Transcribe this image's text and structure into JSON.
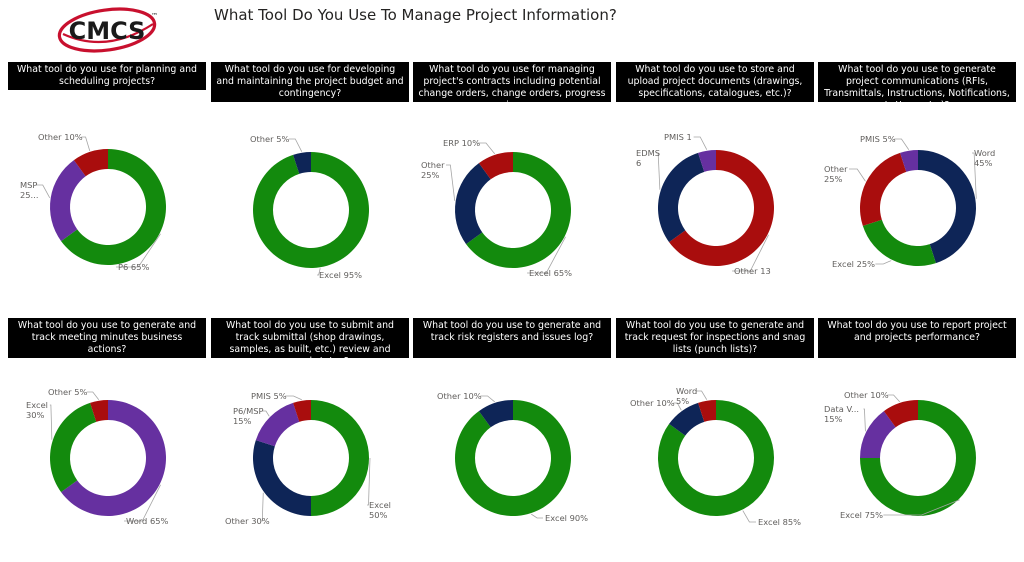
{
  "header": {
    "logo_text": "CMCS",
    "logo_tm": "™",
    "title": "What Tool Do You Use To Manage Project Information?"
  },
  "colors": {
    "green": "#138a0d",
    "purple": "#6630a0",
    "red": "#a90d0d",
    "navy": "#0e2557"
  },
  "chart_data": [
    {
      "type": "pie",
      "title": "What tool do you use for planning and scheduling projects?",
      "slices": [
        {
          "label": "P6",
          "value": 65,
          "display": "P6 65%",
          "color": "#138a0d"
        },
        {
          "label": "MSP",
          "value": 25,
          "display": "MSP|25...",
          "color": "#6630a0"
        },
        {
          "label": "Other",
          "value": 10,
          "display": "Other 10%",
          "color": "#a90d0d"
        }
      ]
    },
    {
      "type": "pie",
      "title": "What tool do you use for developing and maintaining the project budget and contingency?",
      "slices": [
        {
          "label": "Excel",
          "value": 95,
          "display": "Excel 95%",
          "color": "#138a0d"
        },
        {
          "label": "Other",
          "value": 5,
          "display": "Other 5%",
          "color": "#0e2557"
        }
      ]
    },
    {
      "type": "pie",
      "title": "What tool do you use for managing project's contracts including potential change orders, change orders, progress i...",
      "slices": [
        {
          "label": "Excel",
          "value": 65,
          "display": "Excel 65%",
          "color": "#138a0d"
        },
        {
          "label": "Other",
          "value": 25,
          "display": "Other|25%",
          "color": "#0e2557"
        },
        {
          "label": "ERP",
          "value": 10,
          "display": "ERP 10%",
          "color": "#a90d0d"
        }
      ]
    },
    {
      "type": "pie",
      "title": "What tool do you use to store and upload project documents (drawings, specifications, catalogues, etc.)?",
      "slices": [
        {
          "label": "Other",
          "value": 13,
          "display": "Other 13",
          "color": "#a90d0d"
        },
        {
          "label": "EDMS",
          "value": 6,
          "display": "EDMS|6",
          "color": "#0e2557"
        },
        {
          "label": "PMIS",
          "value": 1,
          "display": "PMIS 1",
          "color": "#6630a0"
        }
      ]
    },
    {
      "type": "pie",
      "title": "What tool do you use to generate project communications (RFIs, Transmittals, Instructions, Notifications, Letters, etc.)?",
      "slices": [
        {
          "label": "Word",
          "value": 45,
          "display": "Word|45%",
          "color": "#0e2557"
        },
        {
          "label": "Excel",
          "value": 25,
          "display": "Excel 25%",
          "color": "#138a0d"
        },
        {
          "label": "Other",
          "value": 25,
          "display": "Other|25%",
          "color": "#a90d0d"
        },
        {
          "label": "PMIS",
          "value": 5,
          "display": "PMIS 5%",
          "color": "#6630a0"
        }
      ]
    },
    {
      "type": "pie",
      "title": "What tool do you use to generate and track meeting minutes business actions?",
      "slices": [
        {
          "label": "Word",
          "value": 65,
          "display": "Word 65%",
          "color": "#6630a0"
        },
        {
          "label": "Excel",
          "value": 30,
          "display": "Excel|30%",
          "color": "#138a0d"
        },
        {
          "label": "Other",
          "value": 5,
          "display": "Other 5%",
          "color": "#a90d0d"
        }
      ]
    },
    {
      "type": "pie",
      "title": "What tool do you use to submit and track submittal (shop drawings, samples, as built, etc.) review and approval status?",
      "slices": [
        {
          "label": "Excel",
          "value": 50,
          "display": "Excel|50%",
          "color": "#138a0d"
        },
        {
          "label": "Other",
          "value": 30,
          "display": "Other 30%",
          "color": "#0e2557"
        },
        {
          "label": "P6/MSP",
          "value": 15,
          "display": "P6/MSP|15%",
          "color": "#6630a0"
        },
        {
          "label": "PMIS",
          "value": 5,
          "display": "PMIS 5%",
          "color": "#a90d0d"
        }
      ]
    },
    {
      "type": "pie",
      "title": "What tool do you use to generate and track risk registers and issues log?",
      "slices": [
        {
          "label": "Excel",
          "value": 90,
          "display": "Excel 90%",
          "color": "#138a0d"
        },
        {
          "label": "Other",
          "value": 10,
          "display": "Other 10%",
          "color": "#0e2557"
        }
      ]
    },
    {
      "type": "pie",
      "title": "What tool do you use to generate and track request for inspections and snag lists (punch lists)?",
      "slices": [
        {
          "label": "Excel",
          "value": 85,
          "display": "Excel 85%",
          "color": "#138a0d"
        },
        {
          "label": "Other",
          "value": 10,
          "display": "Other 10%",
          "color": "#0e2557"
        },
        {
          "label": "Word",
          "value": 5,
          "display": "Word|5%",
          "color": "#a90d0d"
        }
      ]
    },
    {
      "type": "pie",
      "title": "What tool do you use to report project and projects performance?",
      "slices": [
        {
          "label": "Excel",
          "value": 75,
          "display": "Excel 75%",
          "color": "#138a0d"
        },
        {
          "label": "Data V...",
          "value": 15,
          "display": "Data V...|15%",
          "color": "#6630a0"
        },
        {
          "label": "Other",
          "value": 10,
          "display": "Other 10%",
          "color": "#a90d0d"
        }
      ]
    }
  ]
}
